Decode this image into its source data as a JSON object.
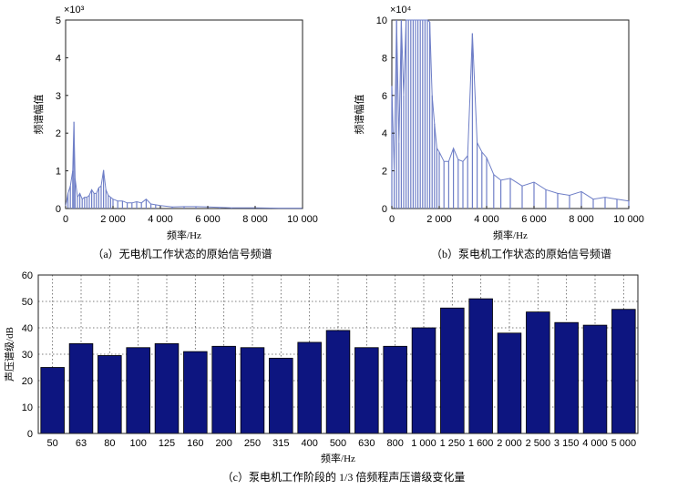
{
  "chart_data": [
    {
      "type": "line",
      "panel": "a",
      "caption": "（a）无电机工作状态的原始信号频谱",
      "xlabel": "频率/Hz",
      "ylabel": "频谱幅值",
      "y_multiplier": "×10³",
      "xlim": [
        0,
        10000
      ],
      "ylim": [
        0,
        5
      ],
      "xticks": [
        0,
        2000,
        4000,
        6000,
        8000,
        10000
      ],
      "xtick_labels": [
        "0",
        "2 000",
        "4 000",
        "6 000",
        "8 000",
        "10 000"
      ],
      "yticks": [
        0,
        1,
        2,
        3,
        4,
        5
      ],
      "ytick_labels": [
        "0",
        "1",
        "2",
        "3",
        "4",
        "5"
      ],
      "series": [
        {
          "color": "#6f7fc7",
          "x": [
            0,
            100,
            200,
            300,
            350,
            400,
            500,
            600,
            700,
            800,
            900,
            1000,
            1100,
            1200,
            1300,
            1400,
            1500,
            1600,
            1700,
            1800,
            1900,
            2000,
            2200,
            2400,
            2600,
            2800,
            3000,
            3200,
            3400,
            3600,
            3800,
            4000,
            4500,
            5000,
            5500,
            6000,
            6500,
            7000,
            8000,
            9000,
            10000
          ],
          "y": [
            0.05,
            0.4,
            0.6,
            1.0,
            2.3,
            0.8,
            0.3,
            0.4,
            0.25,
            0.3,
            0.3,
            0.35,
            0.5,
            0.4,
            0.4,
            0.55,
            0.6,
            1.02,
            0.5,
            0.35,
            0.3,
            0.25,
            0.2,
            0.2,
            0.15,
            0.15,
            0.18,
            0.15,
            0.25,
            0.12,
            0.1,
            0.08,
            0.04,
            0.05,
            0.05,
            0.04,
            0.03,
            0.02,
            0.02,
            0.01,
            0.01
          ]
        }
      ]
    },
    {
      "type": "line",
      "panel": "b",
      "caption": "（b）泵电机工作状态的原始信号频谱",
      "xlabel": "频率/Hz",
      "ylabel": "频谱幅值",
      "y_multiplier": "×10⁴",
      "xlim": [
        0,
        10000
      ],
      "ylim": [
        0,
        10
      ],
      "xticks": [
        0,
        2000,
        4000,
        6000,
        8000,
        10000
      ],
      "xtick_labels": [
        "0",
        "2 000",
        "4 000",
        "6 000",
        "8 000",
        "10 000"
      ],
      "yticks": [
        0,
        2,
        4,
        6,
        8,
        10
      ],
      "ytick_labels": [
        "0",
        "2",
        "4",
        "6",
        "8",
        "10"
      ],
      "series": [
        {
          "color": "#6f7fc7",
          "x": [
            0,
            100,
            200,
            300,
            400,
            500,
            600,
            700,
            800,
            900,
            1000,
            1100,
            1200,
            1300,
            1400,
            1500,
            1600,
            1700,
            1800,
            1900,
            2000,
            2200,
            2400,
            2600,
            2800,
            3000,
            3200,
            3400,
            3600,
            3800,
            4000,
            4300,
            4600,
            5000,
            5500,
            6000,
            6500,
            7000,
            7500,
            8000,
            8500,
            9000,
            9500,
            10000
          ],
          "y": [
            6.5,
            2.0,
            10,
            3.5,
            10,
            6,
            10,
            10,
            10,
            10,
            10,
            10,
            10,
            10,
            10,
            10,
            9.9,
            6,
            4.5,
            3.2,
            3.0,
            2.5,
            2.5,
            3.2,
            2.6,
            2.5,
            2.8,
            9.3,
            3.5,
            3.0,
            2.7,
            1.8,
            1.5,
            1.6,
            1.2,
            1.4,
            1.0,
            0.8,
            0.7,
            0.9,
            0.5,
            0.6,
            0.5,
            0.4
          ]
        }
      ]
    },
    {
      "type": "bar",
      "panel": "c",
      "caption": "（c）泵电机工作阶段的 1/3 倍频程声压谱级变化量",
      "xlabel": "频率/Hz",
      "ylabel": "声压谱级/dB",
      "ylim": [
        0,
        60
      ],
      "yticks": [
        0,
        10,
        20,
        30,
        40,
        50,
        60
      ],
      "ytick_labels": [
        "0",
        "10",
        "20",
        "30",
        "40",
        "50",
        "60"
      ],
      "bar_color": "#0d1580",
      "categories": [
        "50",
        "63",
        "80",
        "100",
        "125",
        "160",
        "200",
        "250",
        "315",
        "400",
        "500",
        "630",
        "800",
        "1 000",
        "1 250",
        "1 600",
        "2 000",
        "2 500",
        "3 150",
        "4 000",
        "5 000"
      ],
      "values": [
        25,
        34,
        29.5,
        32.5,
        34,
        31,
        33,
        32.5,
        28.5,
        34.5,
        39,
        32.5,
        33,
        40,
        47.5,
        51,
        38,
        46,
        42,
        41,
        47
      ]
    }
  ]
}
